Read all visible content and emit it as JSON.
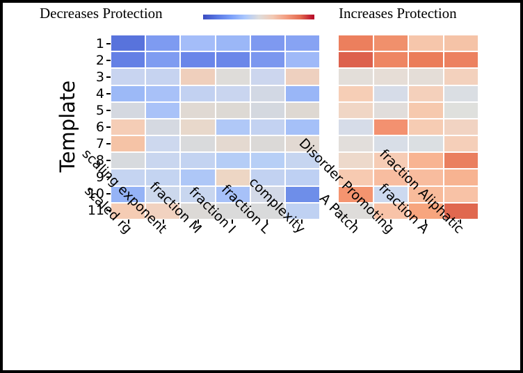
{
  "header": {
    "left_title": "Decreases Protection",
    "right_title": "Increases Protection"
  },
  "colorbar": {
    "gradient_stops": [
      "#3b4cc0",
      "#5977e3",
      "#7b9ff9",
      "#aac7fd",
      "#dddcdc",
      "#f2c9b4",
      "#f39c7f",
      "#e36a50",
      "#b40426"
    ]
  },
  "chart_data": [
    {
      "type": "heatmap",
      "title": "Decreases Protection",
      "ylabel": "Template",
      "rows": [
        "1",
        "2",
        "3",
        "4",
        "5",
        "6",
        "7",
        "8",
        "9",
        "10",
        "11"
      ],
      "columns": [
        "scaled rg",
        "scaling exponent",
        "fraction M",
        "fraction I",
        "fraction L",
        "complexity"
      ],
      "colormap": "coolwarm",
      "value_scale_note": "no numeric labels shown; values estimated from coolwarm colors, -1 blue to +1 red",
      "cell_colors": [
        [
          "#5873dc",
          "#7e9bf1",
          "#a4bdf9",
          "#9bb7f7",
          "#7e99f0",
          "#87a3f3"
        ],
        [
          "#6480e5",
          "#7f9cf1",
          "#6a86e9",
          "#6b87e9",
          "#7b97ef",
          "#9fb9f8"
        ],
        [
          "#c8d4f0",
          "#c6d3f0",
          "#efcfbc",
          "#dedcd9",
          "#ccd6ee",
          "#eed0bf"
        ],
        [
          "#9cb9f7",
          "#a8c1f8",
          "#c2d1f1",
          "#c9d5ef",
          "#d2d8e4",
          "#99b6f7"
        ],
        [
          "#d4d8e0",
          "#a9c2f8",
          "#e0d9d3",
          "#ddd9d4",
          "#d4d8df",
          "#ded8d2"
        ],
        [
          "#f5cdb6",
          "#d5d9e1",
          "#e8d8cb",
          "#b0c8f7",
          "#c3d2f1",
          "#a5c0f8"
        ],
        [
          "#f5c3a6",
          "#cdd8ee",
          "#d9dadc",
          "#e4d9d0",
          "#dbd9d7",
          "#e2d9d2"
        ],
        [
          "#d7dade",
          "#c9d6ef",
          "#c3d3f1",
          "#b5cdf6",
          "#b7cff6",
          "#c6d5f0"
        ],
        [
          "#c5d4f1",
          "#c4d4f1",
          "#aec7f7",
          "#edd6c4",
          "#c2d2f1",
          "#bed0f3"
        ],
        [
          "#95b3f6",
          "#ccd8ec",
          "#c8d6ef",
          "#a7c1f8",
          "#d3d9e7",
          "#6e8ee9"
        ],
        [
          "#f5ccb4",
          "#f1d2c0",
          "#dcd9d6",
          "#dadada",
          "#d9dadb",
          "#bfd1f2"
        ]
      ],
      "values_est": [
        [
          -0.72,
          -0.5,
          -0.33,
          -0.37,
          -0.5,
          -0.46
        ],
        [
          -0.63,
          -0.5,
          -0.6,
          -0.59,
          -0.52,
          -0.35
        ],
        [
          -0.14,
          -0.15,
          0.18,
          0.01,
          -0.12,
          0.17
        ],
        [
          -0.37,
          -0.31,
          -0.17,
          -0.14,
          -0.07,
          -0.38
        ],
        [
          -0.06,
          -0.3,
          0.04,
          0.03,
          -0.06,
          0.03
        ],
        [
          0.21,
          -0.07,
          0.1,
          -0.27,
          -0.17,
          -0.32
        ],
        [
          0.27,
          -0.13,
          -0.02,
          0.06,
          0.01,
          0.04
        ],
        [
          -0.05,
          -0.15,
          -0.17,
          -0.24,
          -0.23,
          -0.14
        ],
        [
          -0.15,
          -0.15,
          -0.28,
          0.11,
          -0.17,
          -0.2
        ],
        [
          -0.42,
          -0.11,
          -0.14,
          -0.33,
          -0.08,
          -0.58
        ],
        [
          0.21,
          0.14,
          0.02,
          0.0,
          0.0,
          -0.19
        ]
      ]
    },
    {
      "type": "heatmap",
      "title": "Increases Protection",
      "ylabel": "Template",
      "rows": [
        "1",
        "2",
        "3",
        "4",
        "5",
        "6",
        "7",
        "8",
        "9",
        "10",
        "11"
      ],
      "columns": [
        "A Patch",
        "Disorder Promoting",
        "fraction A",
        "fraction Aliphatic"
      ],
      "colormap": "coolwarm",
      "value_scale_note": "no numeric labels shown; values estimated from coolwarm colors, -1 blue to +1 red",
      "cell_colors": [
        [
          "#ec7f5d",
          "#f0906c",
          "#f6c6ab",
          "#f5c3a7"
        ],
        [
          "#dd614d",
          "#ee8663",
          "#eb7d5a",
          "#ec8160"
        ],
        [
          "#e3ded9",
          "#e6ddd6",
          "#e4ddd7",
          "#f3d1bd"
        ],
        [
          "#f6ceb6",
          "#d6dce8",
          "#f4d0bb",
          "#dadee3"
        ],
        [
          "#f0d6c5",
          "#e1dddb",
          "#f6c9ae",
          "#dfe0dd"
        ],
        [
          "#d6dce8",
          "#f39170",
          "#f6ccb3",
          "#f1d3c2"
        ],
        [
          "#e2dedb",
          "#d8dee7",
          "#dbdfe2",
          "#f5cfb9"
        ],
        [
          "#edd9cb",
          "#f6ccb5",
          "#f8b492",
          "#ea7f5f"
        ],
        [
          "#f7cab1",
          "#f8bda0",
          "#f8bc9e",
          "#f7b391"
        ],
        [
          "#f4946f",
          "#ccd9ef",
          "#f8bb9b",
          "#f8c2a6"
        ],
        [
          "#dedcda",
          "#f8c3a8",
          "#f7a57e",
          "#e0684f"
        ]
      ],
      "values_est": [
        [
          0.56,
          0.47,
          0.23,
          0.25
        ],
        [
          0.74,
          0.52,
          0.58,
          0.55
        ],
        [
          0.02,
          0.04,
          0.03,
          0.16
        ],
        [
          0.19,
          -0.08,
          0.17,
          -0.03
        ],
        [
          0.11,
          0.01,
          0.22,
          0.0
        ],
        [
          -0.08,
          0.46,
          0.2,
          0.13
        ],
        [
          0.02,
          -0.06,
          -0.02,
          0.18
        ],
        [
          0.09,
          0.2,
          0.35,
          0.57
        ],
        [
          0.21,
          0.29,
          0.29,
          0.38
        ],
        [
          0.46,
          -0.12,
          0.3,
          0.25
        ],
        [
          0.01,
          0.22,
          0.41,
          0.68
        ]
      ]
    }
  ]
}
